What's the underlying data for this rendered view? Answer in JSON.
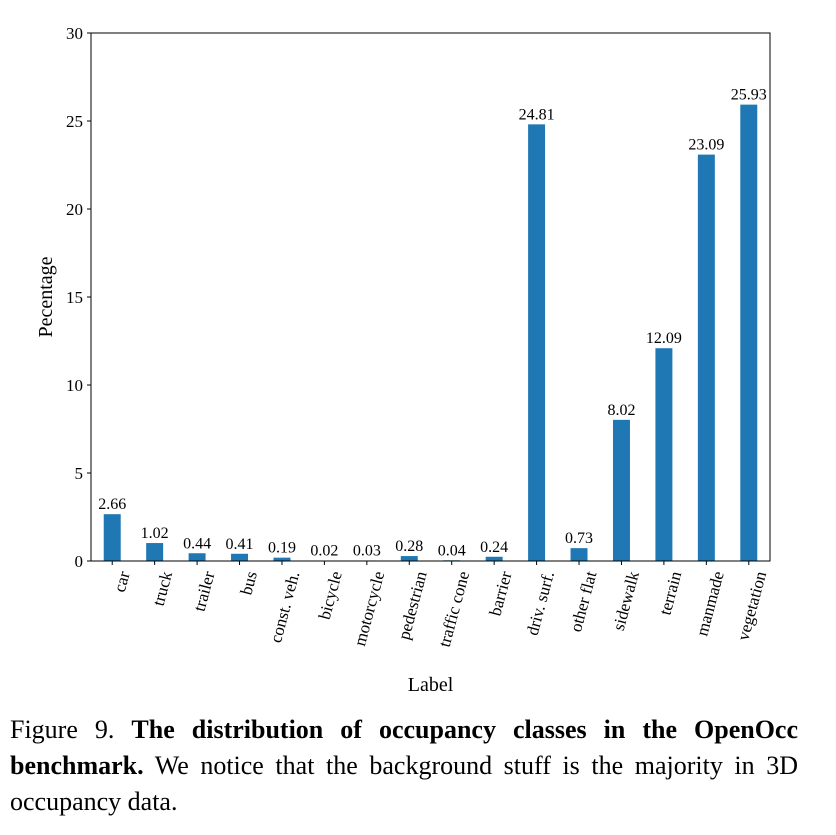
{
  "chart_data": {
    "type": "bar",
    "xlabel": "Label",
    "ylabel": "Pecentage",
    "ylim": [
      0,
      30
    ],
    "yticks": [
      0,
      5,
      10,
      15,
      20,
      25,
      30
    ],
    "categories": [
      "car",
      "truck",
      "trailer",
      "bus",
      "const. veh.",
      "bicycle",
      "motorcycle",
      "pedestrian",
      "traffic cone",
      "barrier",
      "driv. surf.",
      "other flat",
      "sidewalk",
      "terrain",
      "manmade",
      "vegetation"
    ],
    "values": [
      2.66,
      1.02,
      0.44,
      0.41,
      0.19,
      0.02,
      0.03,
      0.28,
      0.04,
      0.24,
      24.81,
      0.73,
      8.02,
      12.09,
      23.09,
      25.93
    ],
    "value_labels": [
      "2.66",
      "1.02",
      "0.44",
      "0.41",
      "0.19",
      "0.02",
      "0.03",
      "0.28",
      "0.04",
      "0.24",
      "24.81",
      "0.73",
      "8.02",
      "12.09",
      "23.09",
      "25.93"
    ],
    "bar_color": "#1f77b4",
    "grid": false
  },
  "caption": {
    "prefix": "Figure 9. ",
    "bold": "The distribution of occupancy classes in the OpenOcc benchmark.",
    "rest": " We notice that the background stuff is the majority in 3D occupancy data."
  }
}
